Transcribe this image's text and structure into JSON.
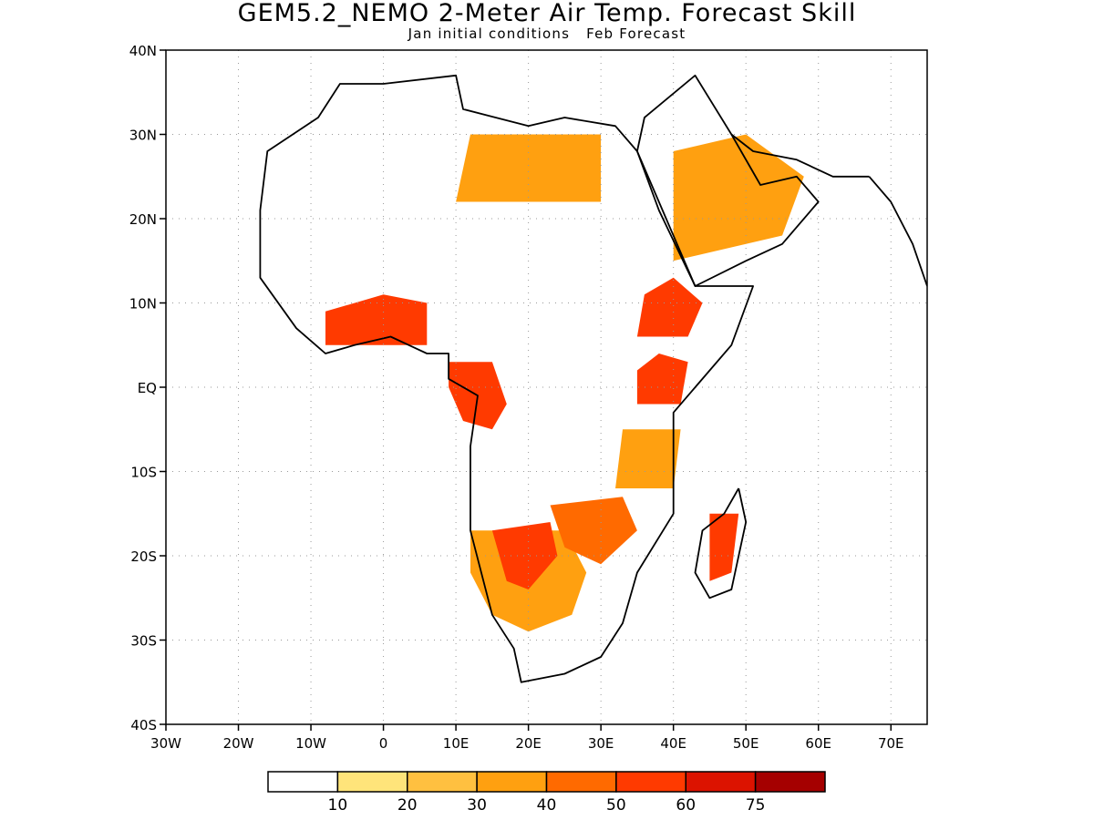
{
  "title": "GEM5.2_NEMO 2-Meter Air Temp. Forecast Skill",
  "subtitle": {
    "left": "Jan initial conditions",
    "right": "Feb Forecast"
  },
  "axes": {
    "lon_range": [
      -30,
      75
    ],
    "lat_range": [
      -40,
      40
    ],
    "x_ticks": [
      {
        "value": -30,
        "label": "30W"
      },
      {
        "value": -20,
        "label": "20W"
      },
      {
        "value": -10,
        "label": "10W"
      },
      {
        "value": 0,
        "label": "0"
      },
      {
        "value": 10,
        "label": "10E"
      },
      {
        "value": 20,
        "label": "20E"
      },
      {
        "value": 30,
        "label": "30E"
      },
      {
        "value": 40,
        "label": "40E"
      },
      {
        "value": 50,
        "label": "50E"
      },
      {
        "value": 60,
        "label": "60E"
      },
      {
        "value": 70,
        "label": "70E"
      }
    ],
    "y_ticks": [
      {
        "value": 40,
        "label": "40N"
      },
      {
        "value": 30,
        "label": "30N"
      },
      {
        "value": 20,
        "label": "20N"
      },
      {
        "value": 10,
        "label": "10N"
      },
      {
        "value": 0,
        "label": "EQ"
      },
      {
        "value": -10,
        "label": "10S"
      },
      {
        "value": -20,
        "label": "20S"
      },
      {
        "value": -30,
        "label": "30S"
      },
      {
        "value": -40,
        "label": "40S"
      }
    ],
    "grid": "dotted"
  },
  "colorbar": {
    "colors": [
      "#ffffff",
      "#ffe47a",
      "#ffc040",
      "#ffa010",
      "#ff6a00",
      "#ff3a00",
      "#dc1300",
      "#a50000"
    ],
    "labels": [
      "10",
      "20",
      "30",
      "40",
      "50",
      "60",
      "75"
    ]
  },
  "regions": [
    {
      "name": "southwest-africa",
      "color": "#ffa010",
      "lonlat": [
        [
          12,
          -17
        ],
        [
          25,
          -17
        ],
        [
          28,
          -22
        ],
        [
          26,
          -27
        ],
        [
          20,
          -29
        ],
        [
          15,
          -27
        ],
        [
          12,
          -22
        ]
      ]
    },
    {
      "name": "namibia-botswana-core",
      "color": "#ff3a00",
      "lonlat": [
        [
          15,
          -17
        ],
        [
          23,
          -16
        ],
        [
          24,
          -20
        ],
        [
          20,
          -24
        ],
        [
          17,
          -23
        ]
      ]
    },
    {
      "name": "zambia-zimbabwe",
      "color": "#ff6a00",
      "lonlat": [
        [
          23,
          -14
        ],
        [
          33,
          -13
        ],
        [
          35,
          -17
        ],
        [
          30,
          -21
        ],
        [
          25,
          -19
        ]
      ]
    },
    {
      "name": "gulf-of-guinea",
      "color": "#ff3a00",
      "lonlat": [
        [
          -8,
          5
        ],
        [
          0,
          5
        ],
        [
          6,
          5
        ],
        [
          6,
          10
        ],
        [
          0,
          11
        ],
        [
          -8,
          9
        ]
      ]
    },
    {
      "name": "gabon-congo",
      "color": "#ff3a00",
      "lonlat": [
        [
          9,
          3
        ],
        [
          15,
          3
        ],
        [
          17,
          -2
        ],
        [
          15,
          -5
        ],
        [
          11,
          -4
        ],
        [
          9,
          0
        ]
      ]
    },
    {
      "name": "ethiopia-highlands",
      "color": "#ff3a00",
      "lonlat": [
        [
          35,
          6
        ],
        [
          42,
          6
        ],
        [
          44,
          10
        ],
        [
          40,
          13
        ],
        [
          36,
          11
        ]
      ]
    },
    {
      "name": "kenya",
      "color": "#ff3a00",
      "lonlat": [
        [
          35,
          -2
        ],
        [
          41,
          -2
        ],
        [
          42,
          3
        ],
        [
          38,
          4
        ],
        [
          35,
          2
        ]
      ]
    },
    {
      "name": "madagascar",
      "color": "#ff3a00",
      "lonlat": [
        [
          45,
          -15
        ],
        [
          49,
          -15
        ],
        [
          48,
          -22
        ],
        [
          45,
          -23
        ]
      ]
    },
    {
      "name": "central-sahara",
      "color": "#ffa010",
      "lonlat": [
        [
          10,
          22
        ],
        [
          30,
          22
        ],
        [
          30,
          30
        ],
        [
          12,
          30
        ]
      ]
    },
    {
      "name": "arabia",
      "color": "#ffa010",
      "lonlat": [
        [
          40,
          15
        ],
        [
          55,
          18
        ],
        [
          58,
          25
        ],
        [
          50,
          30
        ],
        [
          40,
          28
        ]
      ]
    },
    {
      "name": "east-africa-belt",
      "color": "#ffa010",
      "lonlat": [
        [
          32,
          -12
        ],
        [
          40,
          -12
        ],
        [
          41,
          -5
        ],
        [
          33,
          -5
        ]
      ]
    }
  ],
  "outlines": [
    {
      "name": "africa-coastline",
      "lonlat": [
        [
          -17,
          21
        ],
        [
          -16,
          28
        ],
        [
          -9,
          32
        ],
        [
          -6,
          36
        ],
        [
          0,
          36
        ],
        [
          10,
          37
        ],
        [
          11,
          33
        ],
        [
          20,
          31
        ],
        [
          25,
          32
        ],
        [
          32,
          31
        ],
        [
          35,
          28
        ],
        [
          38,
          21
        ],
        [
          43,
          12
        ],
        [
          51,
          12
        ],
        [
          48,
          5
        ],
        [
          40,
          -3
        ],
        [
          40,
          -10
        ],
        [
          40,
          -15
        ],
        [
          35,
          -22
        ],
        [
          33,
          -28
        ],
        [
          30,
          -32
        ],
        [
          25,
          -34
        ],
        [
          19,
          -35
        ],
        [
          18,
          -31
        ],
        [
          15,
          -27
        ],
        [
          12,
          -17
        ],
        [
          12,
          -7
        ],
        [
          13,
          -1
        ],
        [
          9,
          1
        ],
        [
          9,
          4
        ],
        [
          6,
          4
        ],
        [
          1,
          6
        ],
        [
          -4,
          5
        ],
        [
          -8,
          4
        ],
        [
          -12,
          7
        ],
        [
          -17,
          13
        ],
        [
          -17,
          21
        ]
      ]
    },
    {
      "name": "madagascar-outline",
      "lonlat": [
        [
          49,
          -12
        ],
        [
          50,
          -16
        ],
        [
          48,
          -24
        ],
        [
          45,
          -25
        ],
        [
          43,
          -22
        ],
        [
          44,
          -17
        ],
        [
          47,
          -15
        ],
        [
          49,
          -12
        ]
      ]
    },
    {
      "name": "arabia-outline",
      "lonlat": [
        [
          35,
          28
        ],
        [
          36,
          32
        ],
        [
          43,
          37
        ],
        [
          48,
          30
        ],
        [
          52,
          24
        ],
        [
          57,
          25
        ],
        [
          60,
          22
        ],
        [
          55,
          17
        ],
        [
          50,
          15
        ],
        [
          43,
          12
        ],
        [
          39,
          20
        ],
        [
          35,
          28
        ]
      ]
    },
    {
      "name": "india-outline",
      "lonlat": [
        [
          67,
          25
        ],
        [
          70,
          22
        ],
        [
          73,
          17
        ],
        [
          75,
          12
        ]
      ]
    },
    {
      "name": "iran-coast",
      "lonlat": [
        [
          48,
          30
        ],
        [
          51,
          28
        ],
        [
          57,
          27
        ],
        [
          62,
          25
        ],
        [
          67,
          25
        ]
      ]
    }
  ]
}
